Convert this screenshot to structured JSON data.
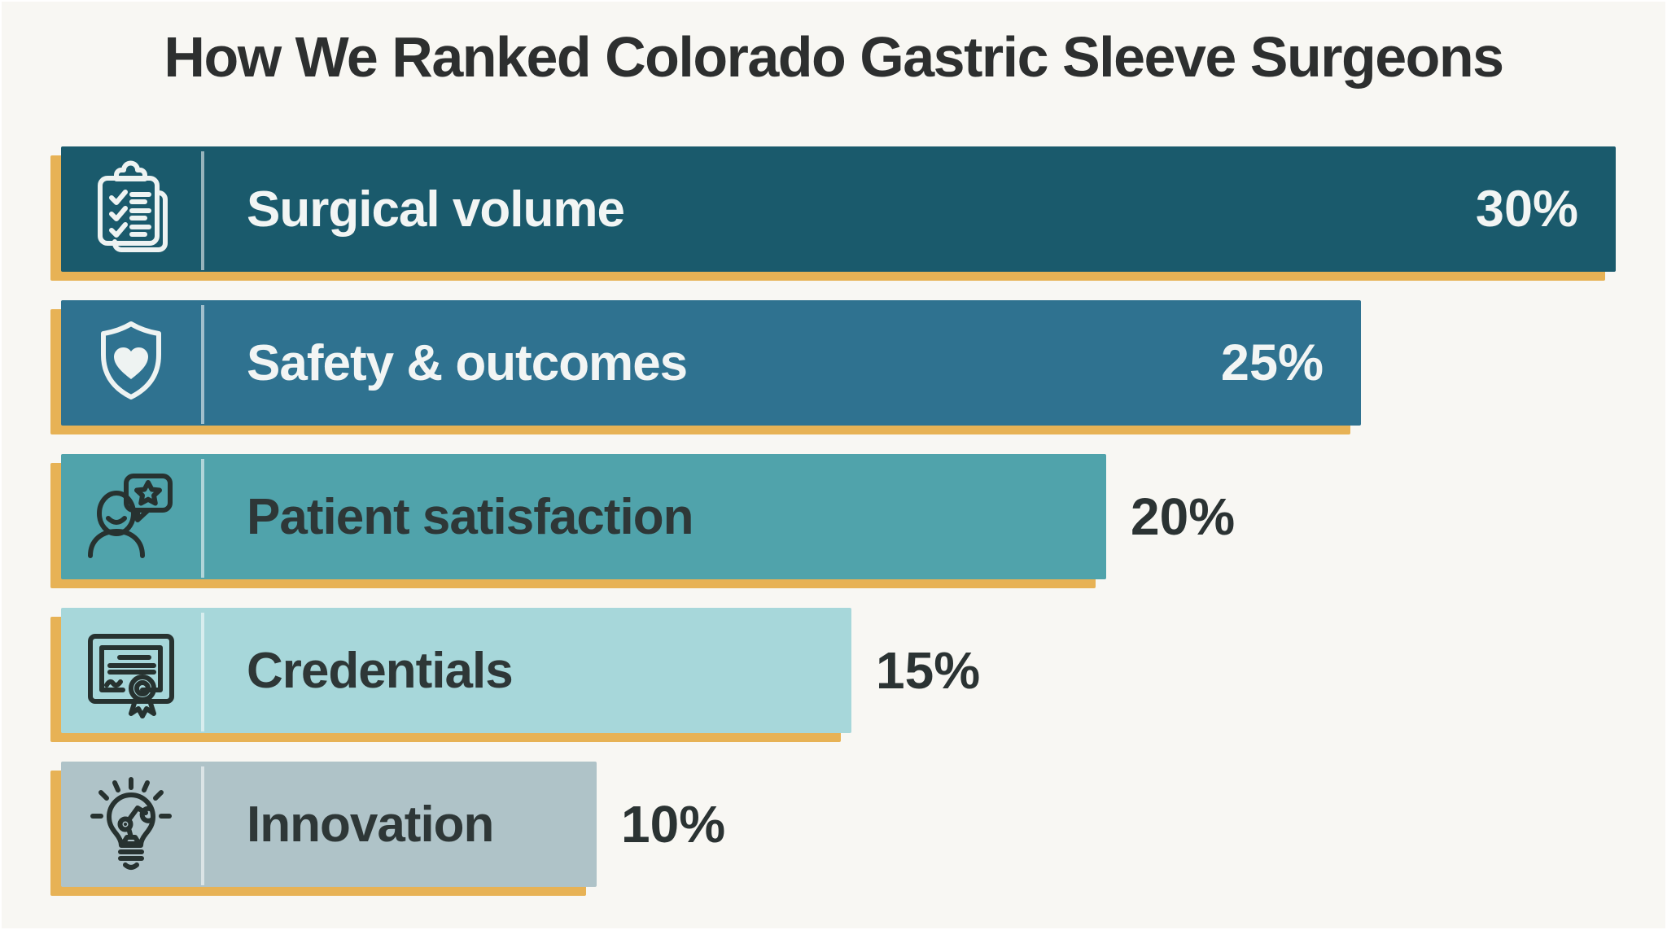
{
  "title": "How We Ranked Colorado Gastric Sleeve Surgeons",
  "chart_data": {
    "type": "bar",
    "orientation": "horizontal",
    "title": "How We Ranked Colorado Gastric Sleeve Surgeons",
    "categories": [
      "Surgical volume",
      "Safety & outcomes",
      "Patient satisfaction",
      "Credentials",
      "Innovation"
    ],
    "values": [
      30,
      25,
      20,
      15,
      10
    ],
    "value_format": "percent",
    "value_range": [
      0,
      30
    ],
    "grid": false,
    "legend": false,
    "background_color": "#f8f7f3",
    "shadow_color": "#e7b255",
    "title_color": "#2d2f2f",
    "outside_value_color": "#2b3333",
    "bars": [
      {
        "label": "Surgical volume",
        "value": 30,
        "value_text": "30%",
        "icon": "clipboard-checklist-icon",
        "bar_color": "#1a5a6c",
        "text_color": "#f2f5f4",
        "icon_color": "#eef3f2",
        "value_inside": true
      },
      {
        "label": "Safety & outcomes",
        "value": 25,
        "value_text": "25%",
        "icon": "shield-heart-icon",
        "bar_color": "#2f7290",
        "text_color": "#f2f5f4",
        "icon_color": "#eef3f2",
        "value_inside": true
      },
      {
        "label": "Patient satisfaction",
        "value": 20,
        "value_text": "20%",
        "icon": "person-review-icon",
        "bar_color": "#50a3ab",
        "text_color": "#2e3737",
        "icon_color": "#273230",
        "value_inside": false
      },
      {
        "label": "Credentials",
        "value": 15,
        "value_text": "15%",
        "icon": "certificate-icon",
        "bar_color": "#a7d7da",
        "text_color": "#2e3737",
        "icon_color": "#273230",
        "value_inside": false
      },
      {
        "label": "Innovation",
        "value": 10,
        "value_text": "10%",
        "icon": "lightbulb-innovation-icon",
        "bar_color": "#afc3c8",
        "text_color": "#2e3737",
        "icon_color": "#273230",
        "value_inside": false
      }
    ]
  }
}
